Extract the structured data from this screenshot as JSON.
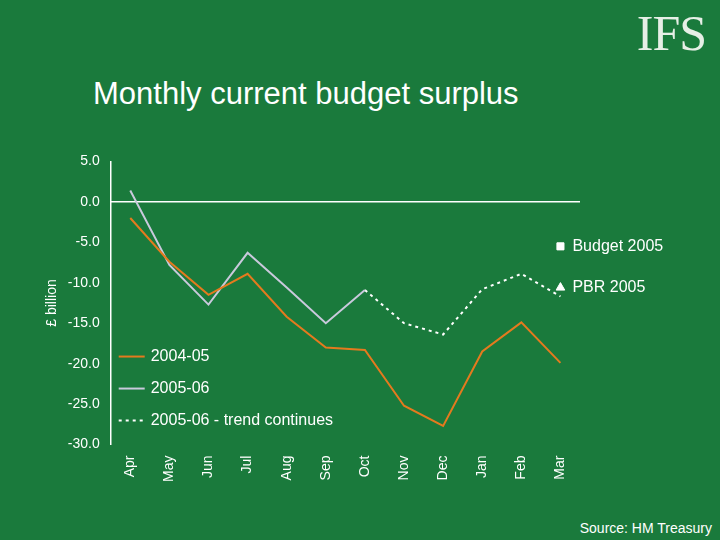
{
  "chart_data": {
    "type": "line",
    "title": "Monthly current budget surplus",
    "logo": "IFS",
    "source": "Source: HM Treasury",
    "y_label": "£ billion",
    "categories": [
      "Apr",
      "May",
      "Jun",
      "Jul",
      "Aug",
      "Sep",
      "Oct",
      "Nov",
      "Dec",
      "Jan",
      "Feb",
      "Mar"
    ],
    "series": [
      {
        "name": "2004-05",
        "color": "#e47a1e",
        "line_style": "solid",
        "marker": "none",
        "values": [
          -2.0,
          -7.4,
          -11.5,
          -8.9,
          -14.2,
          -18.0,
          -18.3,
          -25.2,
          -27.7,
          -18.5,
          -14.9,
          -19.9
        ]
      },
      {
        "name": "2005-06",
        "color": "#c9c9dc",
        "line_style": "solid",
        "marker": "none",
        "values": [
          1.4,
          -7.8,
          -12.7,
          -6.3,
          -10.6,
          -15.0,
          -10.9,
          null,
          null,
          null,
          null,
          null
        ]
      },
      {
        "name": "2005-06 - trend continues",
        "color": "#ffffff",
        "line_style": "dashed",
        "marker": "none",
        "values": [
          null,
          null,
          null,
          null,
          null,
          null,
          -10.9,
          -15.0,
          -16.4,
          -10.8,
          -8.9,
          -11.7
        ]
      },
      {
        "name": "Budget 2005",
        "color": "#ffffff",
        "type": "scatter",
        "marker": "square",
        "values": [
          null,
          null,
          null,
          null,
          null,
          null,
          null,
          null,
          null,
          null,
          null,
          -5.5
        ]
      },
      {
        "name": "PBR 2005",
        "color": "#ffffff",
        "type": "scatter",
        "marker": "triangle",
        "values": [
          null,
          null,
          null,
          null,
          null,
          null,
          null,
          null,
          null,
          null,
          null,
          -10.6
        ]
      }
    ],
    "ylim": [
      -30,
      5
    ],
    "yticks": [
      {
        "value": 5,
        "label": "5.0"
      },
      {
        "value": 0,
        "label": "0.0"
      },
      {
        "value": -5,
        "label": "-5.0"
      },
      {
        "value": -10,
        "label": "-10.0"
      },
      {
        "value": -15,
        "label": "-15.0"
      },
      {
        "value": -20,
        "label": "-20.0"
      },
      {
        "value": -25,
        "label": "-25.0"
      },
      {
        "value": -30,
        "label": "-30.0"
      }
    ],
    "grid": false,
    "legend": "lower left"
  }
}
